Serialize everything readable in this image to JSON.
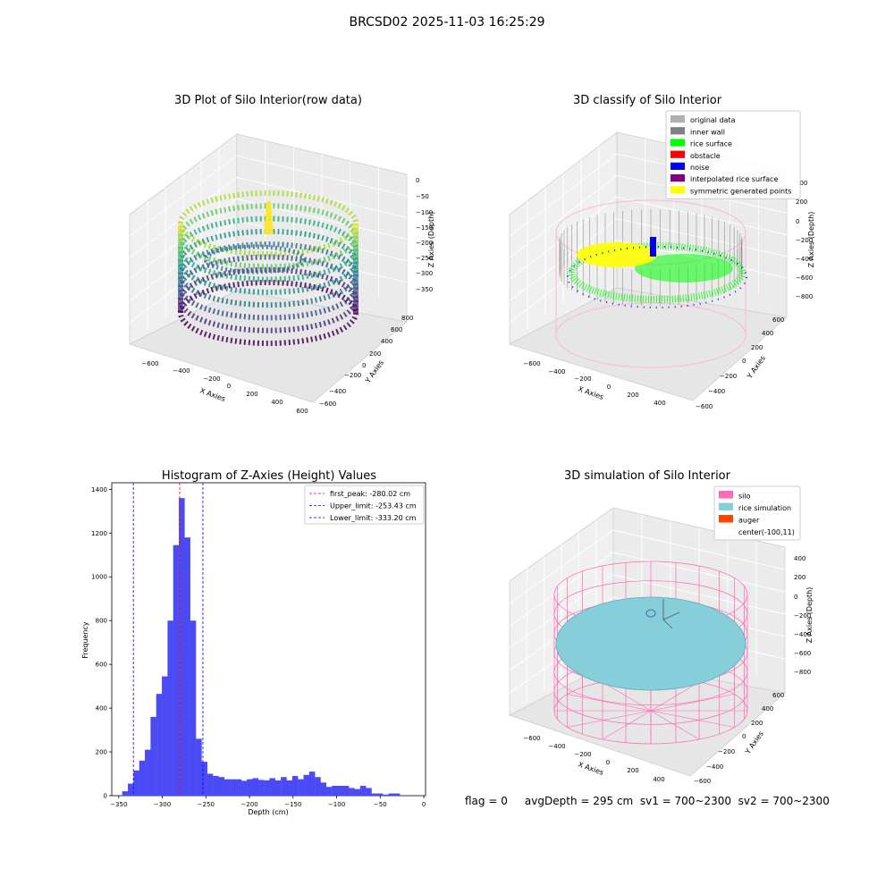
{
  "figure_title": "BRCSD02 2025-11-03 16:25:29",
  "footer_text": "flag = 0     avgDepth = 295 cm  sv1 = 700~2300  sv2 = 700~2300",
  "colors": {
    "histogram_bar": "#4b4bf5",
    "first_peak_line": "#ff0000",
    "limit_line": "#0000ff",
    "silo": "#ff69b4",
    "rice_simulation": "#87cedb",
    "auger": "#ff4500",
    "rice_surface": "#00ff00",
    "noise": "#0000ee",
    "symmetric": "#ffff00"
  },
  "chart_data": [
    {
      "type": "scatter",
      "title": "3D Plot of Silo Interior(row data)",
      "xlabel": "X Axies",
      "ylabel": "Y Axies",
      "zlabel": "Z Axies (Depth)",
      "x_ticks": [
        "−600",
        "−400",
        "−200",
        "0",
        "200",
        "400",
        "600"
      ],
      "y_ticks": [
        "−600",
        "−400",
        "−200",
        "0",
        "200",
        "400",
        "600",
        "800"
      ],
      "z_ticks": [
        "0",
        "−50",
        "−100",
        "−150",
        "−200",
        "−250",
        "−300",
        "−350"
      ]
    },
    {
      "type": "scatter",
      "title": "3D classify of Silo Interior",
      "xlabel": "X Axies",
      "ylabel": "Y Axies",
      "zlabel": "Z Axies (Depth)",
      "x_ticks": [
        "−600",
        "−400",
        "−200",
        "0",
        "200",
        "400"
      ],
      "y_ticks": [
        "−600",
        "−400",
        "−200",
        "0",
        "200",
        "400",
        "600"
      ],
      "z_ticks": [
        "400",
        "200",
        "0",
        "−200",
        "−400",
        "−600",
        "−800"
      ],
      "legend": [
        {
          "label": "original data",
          "color": "#b0b0b0"
        },
        {
          "label": "inner wall",
          "color": "#808080"
        },
        {
          "label": "rice surface",
          "color": "#00ff00"
        },
        {
          "label": "obstacle",
          "color": "#ff0000"
        },
        {
          "label": "noise",
          "color": "#0000ee"
        },
        {
          "label": "interpolated rice surface",
          "color": "#800080"
        },
        {
          "label": "symmetric generated points",
          "color": "#ffff00"
        }
      ]
    },
    {
      "type": "bar",
      "title": "Histogram of Z-Axies (Height) Values",
      "xlabel": "Depth (cm)",
      "ylabel": "Frequency",
      "xlim": [
        -358,
        2
      ],
      "ylim": [
        0,
        1430
      ],
      "x_ticks": [
        -350,
        -300,
        -250,
        -200,
        -150,
        -100,
        -50,
        0
      ],
      "x_tick_labels": [
        "−350",
        "−300",
        "−250",
        "−200",
        "−150",
        "−100",
        "−50",
        "0"
      ],
      "y_ticks": [
        0,
        200,
        400,
        600,
        800,
        1000,
        1200,
        1400
      ],
      "y_tick_labels": [
        "0",
        "200",
        "400",
        "600",
        "800",
        "1000",
        "1200",
        "1400"
      ],
      "bin_start": -346,
      "bin_width": 6.5,
      "values": [
        20,
        55,
        115,
        160,
        210,
        360,
        465,
        545,
        800,
        1145,
        1360,
        1180,
        800,
        260,
        155,
        100,
        90,
        85,
        75,
        75,
        75,
        68,
        75,
        80,
        72,
        70,
        80,
        70,
        85,
        70,
        90,
        75,
        95,
        110,
        85,
        60,
        40,
        45,
        45,
        45,
        35,
        30,
        45,
        35,
        10,
        10,
        5,
        10,
        10
      ],
      "lines": [
        {
          "label": "first_peak: -280.02 cm",
          "x": -280.02,
          "color": "#ff0000"
        },
        {
          "label": "Upper_limit: -253.43 cm",
          "x": -253.43,
          "color": "#0000ff"
        },
        {
          "label": "Lower_limit: -333.20 cm",
          "x": -333.2,
          "color": "#0000ff"
        }
      ]
    },
    {
      "type": "scatter",
      "title": "3D simulation of Silo Interior",
      "xlabel": "X Axies",
      "ylabel": "Y Axies",
      "zlabel": "Z Axies (Depth)",
      "x_ticks": [
        "−600",
        "−400",
        "−200",
        "0",
        "200",
        "400"
      ],
      "y_ticks": [
        "−600",
        "−400",
        "−200",
        "0",
        "200",
        "400",
        "600"
      ],
      "z_ticks": [
        "400",
        "200",
        "0",
        "−200",
        "−400",
        "−600",
        "−800"
      ],
      "legend": [
        {
          "label": "silo",
          "color": "#ff69b4"
        },
        {
          "label": "rice simulation",
          "color": "#87cedb"
        },
        {
          "label": "auger",
          "color": "#ff4500"
        },
        {
          "label": "center(-100,11)",
          "color": ""
        }
      ]
    }
  ]
}
